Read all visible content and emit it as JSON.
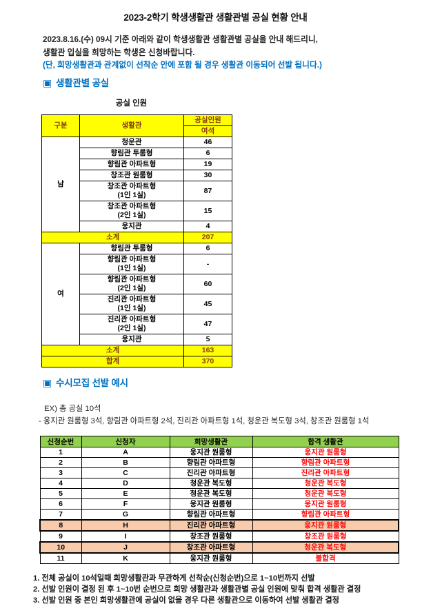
{
  "title": "2023-2학기 학생생활관 생활관별 공실 현황 안내",
  "intro": {
    "line1": "2023.8.16.(수) 09시 기준 아래와 같이 학생생활관 생활관별 공실을 안내 해드리니,",
    "line2": "생활관 입실을 희망하는 학생은 신청바랍니다.",
    "note": "(단, 희망생활관과 관계없이 선착순 안에 포함 될 경우 생활관 이동되어 선발 됩니다.)"
  },
  "section1": {
    "marker": "▣",
    "heading": "생활관별 공실",
    "table_title": "공실 인원",
    "vacancy_table": {
      "headers": {
        "col1": "구분",
        "col2": "생활관",
        "col3_top": "공실인원",
        "col3_bottom": "여석"
      },
      "male": {
        "label": "남",
        "rows": [
          {
            "name": "청운관",
            "value": "46"
          },
          {
            "name": "향림관 투룸형",
            "value": "6"
          },
          {
            "name": "향림관 아파트형",
            "value": "19"
          },
          {
            "name": "창조관 원룸형",
            "value": "30"
          },
          {
            "name": "창조관 아파트형",
            "name2": "(1인 1실)",
            "value": "87"
          },
          {
            "name": "창조관 아파트형",
            "name2": "(2인 1실)",
            "value": "15"
          },
          {
            "name": "웅지관",
            "value": "4"
          }
        ],
        "subtotal_label": "소계",
        "subtotal": "207"
      },
      "female": {
        "label": "여",
        "rows": [
          {
            "name": "향림관 투룸형",
            "value": "6"
          },
          {
            "name": "향림관 아파트형",
            "name2": "(1인 1실)",
            "value": "-"
          },
          {
            "name": "향림관 아파트형",
            "name2": "(2인 1실)",
            "value": "60"
          },
          {
            "name": "진리관 아파트형",
            "name2": "(1인 1실)",
            "value": "45"
          },
          {
            "name": "진리관 아파트형",
            "name2": "(2인 1실)",
            "value": "47"
          },
          {
            "name": "웅지관",
            "value": "5"
          }
        ],
        "subtotal_label": "소계",
        "subtotal": "163"
      },
      "total_label": "합계",
      "total": "370"
    }
  },
  "section2": {
    "marker": "▣",
    "heading": "수시모집 선발 예시",
    "example_line1": "EX) 총 공실 10석",
    "example_line2": "- 웅지관 원룸형 3석, 향림관 아파트형 2석, 진리관 아파트형 1석, 청운관 복도형 3석, 창조관 원룸형 1석",
    "selection_table": {
      "headers": [
        "신청순번",
        "신청자",
        "희망생활관",
        "합격 생활관"
      ],
      "rows": [
        {
          "no": "1",
          "applicant": "A",
          "desired": "웅지관 원룸형",
          "assigned": "웅지관 원룸형",
          "highlight": false
        },
        {
          "no": "2",
          "applicant": "B",
          "desired": "향림관 아파트형",
          "assigned": "향림관 아파트형",
          "highlight": false
        },
        {
          "no": "3",
          "applicant": "C",
          "desired": "진리관 아파트형",
          "assigned": "진리관 아파트형",
          "highlight": false
        },
        {
          "no": "4",
          "applicant": "D",
          "desired": "청운관 복도형",
          "assigned": "청운관 복도형",
          "highlight": false
        },
        {
          "no": "5",
          "applicant": "E",
          "desired": "청운관 복도형",
          "assigned": "청운관 복도형",
          "highlight": false
        },
        {
          "no": "6",
          "applicant": "F",
          "desired": "웅지관 원룸형",
          "assigned": "웅지관 원룸형",
          "highlight": false
        },
        {
          "no": "7",
          "applicant": "G",
          "desired": "향림관 아파트형",
          "assigned": "향림관 아파트형",
          "highlight": false
        },
        {
          "no": "8",
          "applicant": "H",
          "desired": "진리관 아파트형",
          "assigned": "웅지관 원룸형",
          "highlight": true
        },
        {
          "no": "9",
          "applicant": "I",
          "desired": "창조관 원룸형",
          "assigned": "창조관 원룸형",
          "highlight": false
        },
        {
          "no": "10",
          "applicant": "J",
          "desired": "창조관 아파트형",
          "assigned": "청운관 복도형",
          "highlight": true
        },
        {
          "no": "11",
          "applicant": "K",
          "desired": "웅지관 원룸형",
          "assigned": "불합격",
          "highlight": false
        }
      ]
    }
  },
  "notes": [
    "1. 전체 공실이 10석일때 희망생활관과 무관하게 선착순(신청순번)으로 1~10번까지 선발",
    "2. 선발 인원이 결정 된 후 1~10번 순번으로 희망 생활관과 생활관별 공실 인원에 맞춰 합격 생활관 결정",
    "3. 선발 인원 중 본인 희망생활관에 공실이 없을 경우 다른 생활관으로 이동하여 선발 생활관 결정"
  ],
  "colors": {
    "accent_blue": "#0070C0",
    "table1_header_bg": "#FFFF00",
    "table1_header_text": "#843C0C",
    "table2_header_bg": "#92D050",
    "highlight_row_bg": "#F8CBAD",
    "assigned_text": "#FF0000"
  }
}
